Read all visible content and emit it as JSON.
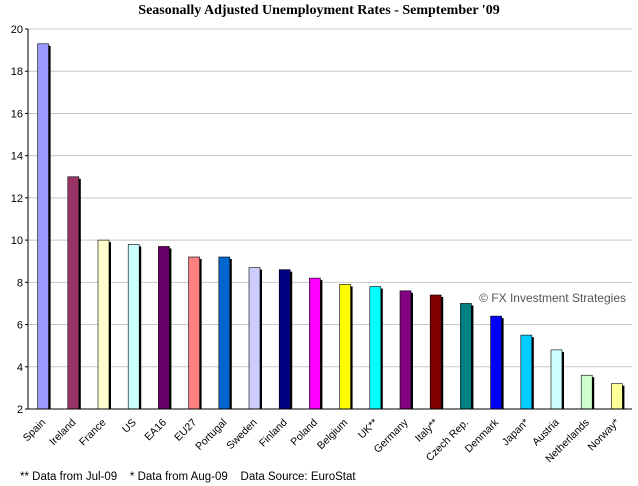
{
  "chart_data": {
    "type": "bar",
    "title": "Seasonally Adjusted Unemployment Rates - Semptember '09",
    "xlabel": "",
    "ylabel": "",
    "ylim": [
      2,
      20
    ],
    "yticks": [
      2,
      4,
      6,
      8,
      10,
      12,
      14,
      16,
      18,
      20
    ],
    "grid": "horizontal",
    "categories": [
      "Spain",
      "Ireland",
      "France",
      "US",
      "EA16",
      "EU27",
      "Portugal",
      "Sweden",
      "Finland",
      "Poland",
      "Belgium",
      "UK**",
      "Germany",
      "Italy**",
      "Czech Rep.",
      "Denmark",
      "Japan*",
      "Austria",
      "Netherlands",
      "Norway*"
    ],
    "values": [
      19.3,
      13.0,
      10.0,
      9.8,
      9.7,
      9.2,
      9.2,
      8.7,
      8.6,
      8.2,
      7.9,
      7.8,
      7.6,
      7.4,
      7.0,
      6.4,
      5.5,
      4.8,
      3.6,
      3.2
    ],
    "colors": [
      "#9999ff",
      "#993366",
      "#ffffcc",
      "#ccffff",
      "#660066",
      "#ff8080",
      "#0066cc",
      "#ccccff",
      "#000080",
      "#ff00ff",
      "#ffff00",
      "#00ffff",
      "#800080",
      "#800000",
      "#008080",
      "#0000ff",
      "#00ccff",
      "#ccffff",
      "#ccffcc",
      "#ffff99"
    ],
    "annotation": "© FX Investment Strategies",
    "footnote": "** Data from Jul-09    * Data from Aug-09    Data Source: EuroStat"
  }
}
